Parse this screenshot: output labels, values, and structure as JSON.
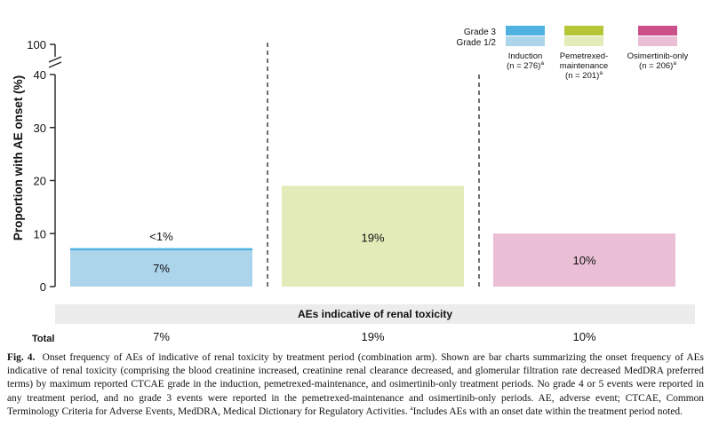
{
  "chart_data": {
    "type": "bar",
    "ylabel": "Proportion with AE onset (%)",
    "y_ticks": [
      "0",
      "10",
      "20",
      "30",
      "40",
      "100"
    ],
    "ylim": [
      0,
      40
    ],
    "axis_break": true,
    "legend": {
      "placement": "top-right",
      "grade3_label": "Grade 3",
      "grade12_label": "Grade 1/2"
    },
    "categories": [
      {
        "name": "Induction",
        "n_label": "(n = 276)",
        "n_sup": "a"
      },
      {
        "name": "Pemetrexed-",
        "name2": "maintenance",
        "n_label": "(n = 201)",
        "n_sup": "a"
      },
      {
        "name": "Osimertinib-only",
        "n_label": "(n = 206)",
        "n_sup": "a"
      }
    ],
    "series": [
      {
        "name": "Grade 1/2",
        "values": [
          7,
          19,
          10
        ],
        "colors": [
          "#acd5ec",
          "#e3ebb8",
          "#eabfd5"
        ]
      },
      {
        "name": "Grade 3",
        "values": [
          0.4,
          0,
          0
        ],
        "colors": [
          "#4fb2e0",
          "#b5c637",
          "#cb4f88"
        ]
      }
    ],
    "bar_labels": {
      "grade12": [
        "7%",
        "19%",
        "10%"
      ],
      "grade3": [
        "<1%",
        "",
        ""
      ]
    },
    "x_band_label": "AEs indicative of renal toxicity",
    "total_label": "Total",
    "totals": [
      "7%",
      "19%",
      "10%"
    ]
  },
  "caption": {
    "fig_label": "Fig. 4.",
    "text": "Onset frequency of AEs of indicative of renal toxicity by treatment period (combination arm). Shown are bar charts summarizing the onset frequency of AEs indicative of renal toxicity (comprising the blood creatinine increased, creatinine renal clearance decreased, and glomerular filtration rate decreased MedDRA preferred terms) by maximum reported CTCAE grade in the induction, pemetrexed-maintenance, and osimertinib-only treatment periods. No grade 4 or 5 events were reported in any treatment period, and no grade 3 events were reported in the pemetrexed-maintenance and osimertinib-only periods. AE, adverse event; CTCAE, Common Terminology Criteria for Adverse Events, MedDRA, Medical Dictionary for Regulatory Activities.",
    "footnote_sup": "a",
    "footnote_text": "Includes AEs with an onset date within the treatment period noted."
  }
}
